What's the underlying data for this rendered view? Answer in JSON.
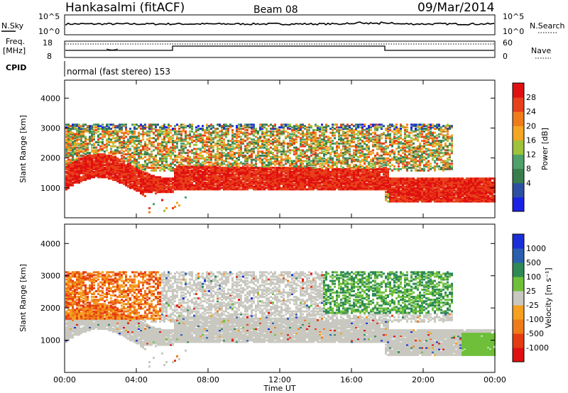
{
  "header": {
    "station": "Hankasalmi (fitACF)",
    "beam": "Beam 08",
    "date": "09/Mar/2014"
  },
  "noise_panel": {
    "left_label": "N.Sky",
    "right_label": "N.Search",
    "left_ticks": [
      "10^5",
      "10^0"
    ],
    "right_ticks": [
      "10^5",
      "10^0"
    ]
  },
  "freq_panel": {
    "left_label_1": "Freq.",
    "left_label_2": "[MHz]",
    "right_label": "Nave",
    "left_ticks": [
      "18",
      "8"
    ],
    "right_ticks": [
      "60",
      "0"
    ]
  },
  "cpid": {
    "label": "CPID",
    "text": "normal (fast stereo) 153"
  },
  "colors": {
    "power_scale": [
      "#1a22e6",
      "#2d4fa3",
      "#3a7d4c",
      "#4fa06a",
      "#9ec23a",
      "#f5a623",
      "#f07b1a",
      "#e8401a",
      "#e01010"
    ],
    "velocity_scale": [
      "#1a2ed8",
      "#2a5fb0",
      "#2e8a55",
      "#6fbf3a",
      "#c8c8c0",
      "#f5a020",
      "#ef7a18",
      "#e43c12",
      "#e01010"
    ]
  },
  "chart_data": [
    {
      "type": "heatmap",
      "panel": "power",
      "ylabel": "Slant Range [km]",
      "ylim": [
        0,
        4600
      ],
      "yticks": [
        "1000",
        "2000",
        "3000",
        "4000"
      ],
      "colorbar_label": "Power [dB]",
      "colorbar_ticks": [
        "28",
        "24",
        "20",
        "16",
        "12",
        "8",
        "4"
      ],
      "colorbar_range": [
        0,
        30
      ]
    },
    {
      "type": "heatmap",
      "panel": "velocity",
      "ylabel": "Slant Range [km]",
      "ylim": [
        0,
        4600
      ],
      "yticks": [
        "1000",
        "2000",
        "3000",
        "4000"
      ],
      "colorbar_label": "Velocity [m s⁻¹]",
      "colorbar_ticks": [
        "1000",
        "500",
        "100",
        "25",
        "-25",
        "-100",
        "-500",
        "-1000"
      ]
    }
  ],
  "x_axis": {
    "label": "Time UT",
    "ticks": [
      "00:00",
      "04:00",
      "08:00",
      "12:00",
      "16:00",
      "20:00",
      "00:00"
    ]
  }
}
